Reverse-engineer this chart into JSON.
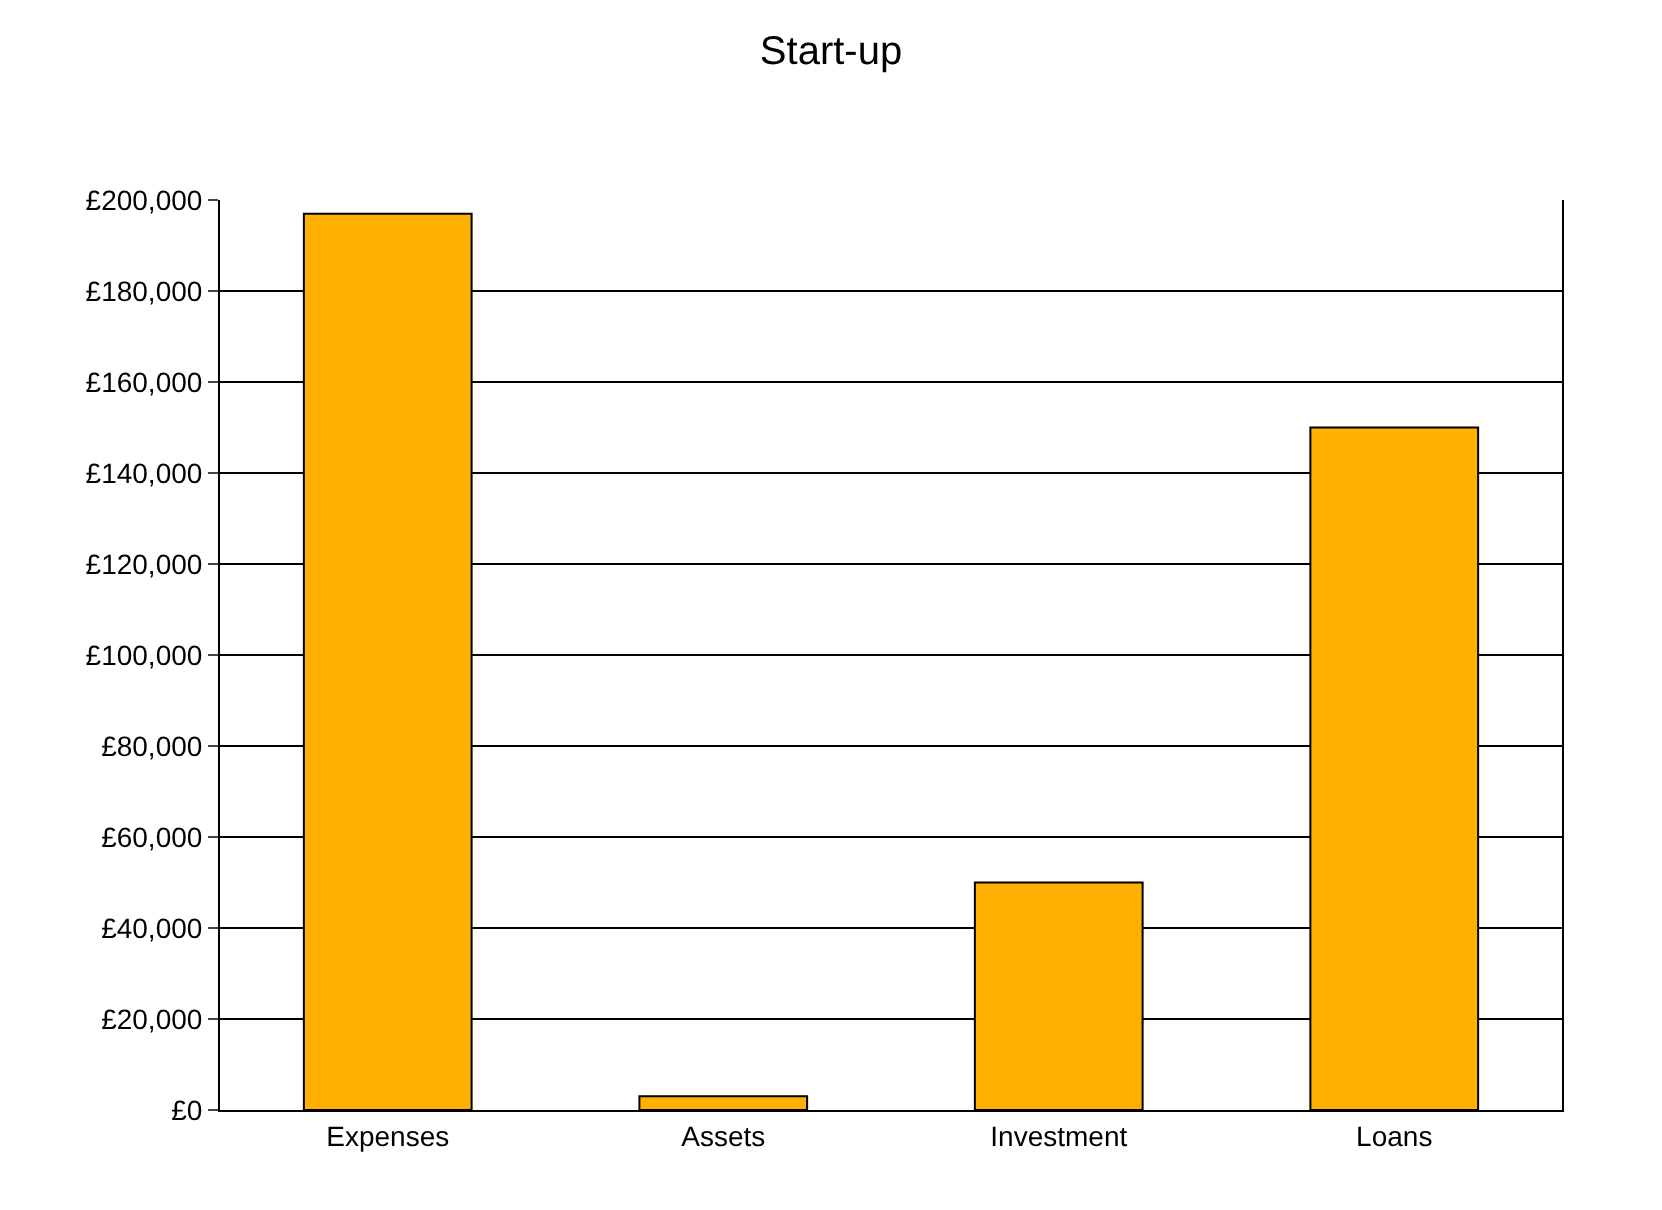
{
  "chart_data": {
    "type": "bar",
    "title": "Start-up",
    "categories": [
      "Expenses",
      "Assets",
      "Investment",
      "Loans"
    ],
    "values": [
      197000,
      3000,
      50000,
      150000
    ],
    "color": "#ffb000",
    "ylim": [
      0,
      200000
    ],
    "yticks": [
      {
        "value": 0,
        "label": "£0"
      },
      {
        "value": 20000,
        "label": "£20,000"
      },
      {
        "value": 40000,
        "label": "£40,000"
      },
      {
        "value": 60000,
        "label": "£60,000"
      },
      {
        "value": 80000,
        "label": "£80,000"
      },
      {
        "value": 100000,
        "label": "£100,000"
      },
      {
        "value": 120000,
        "label": "£120,000"
      },
      {
        "value": 140000,
        "label": "£140,000"
      },
      {
        "value": 160000,
        "label": "£160,000"
      },
      {
        "value": 180000,
        "label": "£180,000"
      },
      {
        "value": 200000,
        "label": "£200,000"
      }
    ],
    "grid": "y",
    "legend": false
  }
}
